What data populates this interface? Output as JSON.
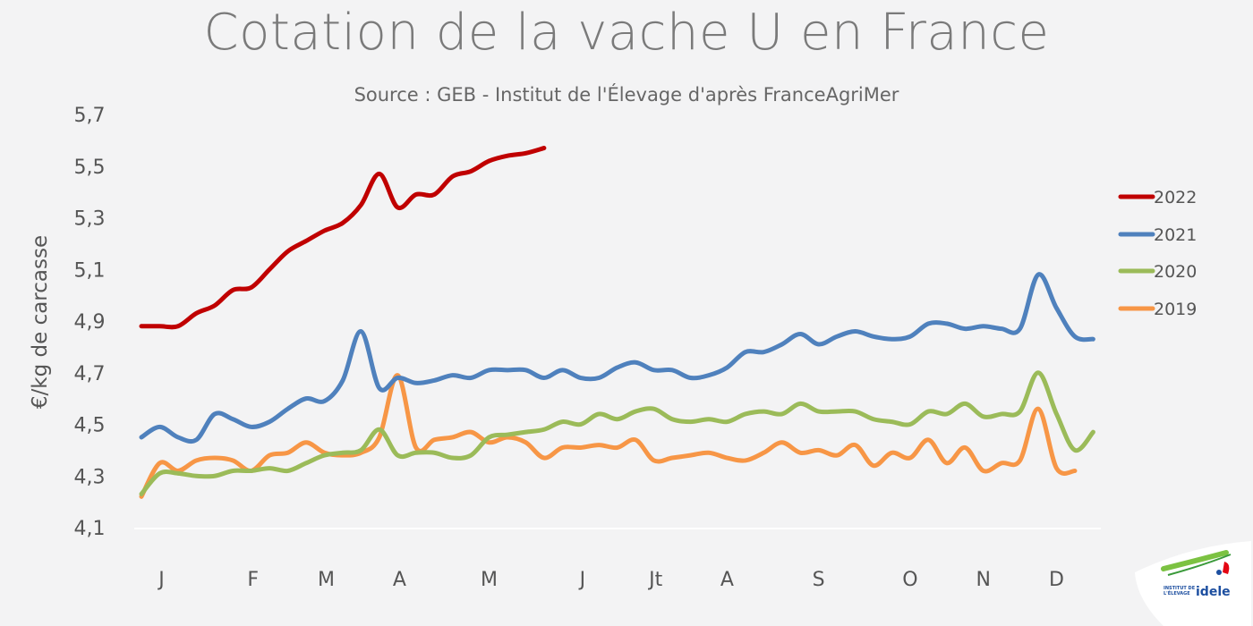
{
  "chart_data": {
    "type": "line",
    "title": "Cotation de la vache U en France",
    "subtitle": "Source : GEB - Institut de l'Élevage d'après FranceAgriMer",
    "ylabel": "€/kg de carcasse",
    "xlabel": "",
    "ylim": [
      4.1,
      5.7
    ],
    "yticks": [
      "4,1",
      "4,3",
      "4,5",
      "4,7",
      "4,9",
      "5,1",
      "5,3",
      "5,5",
      "5,7"
    ],
    "x_unit": "week",
    "xticks": [
      "J",
      "F",
      "M",
      "A",
      "M",
      "J",
      "Jt",
      "A",
      "S",
      "O",
      "N",
      "D"
    ],
    "grid": false,
    "legend_position": "right",
    "series": [
      {
        "name": "2022",
        "color": "#c00000",
        "values": [
          4.88,
          4.88,
          4.88,
          4.93,
          4.96,
          5.02,
          5.03,
          5.1,
          5.17,
          5.21,
          5.25,
          5.28,
          5.35,
          5.47,
          5.34,
          5.39,
          5.39,
          5.46,
          5.48,
          5.52,
          5.54,
          5.55,
          5.57
        ]
      },
      {
        "name": "2021",
        "color": "#4f81bd",
        "values": [
          4.45,
          4.49,
          4.45,
          4.44,
          4.54,
          4.52,
          4.49,
          4.51,
          4.56,
          4.6,
          4.59,
          4.67,
          4.86,
          4.64,
          4.68,
          4.66,
          4.67,
          4.69,
          4.68,
          4.71,
          4.71,
          4.71,
          4.68,
          4.71,
          4.68,
          4.68,
          4.72,
          4.74,
          4.71,
          4.71,
          4.68,
          4.69,
          4.72,
          4.78,
          4.78,
          4.81,
          4.85,
          4.81,
          4.84,
          4.86,
          4.84,
          4.83,
          4.84,
          4.89,
          4.89,
          4.87,
          4.88,
          4.87,
          4.87,
          5.08,
          4.95,
          4.84,
          4.83
        ]
      },
      {
        "name": "2020",
        "color": "#9bbb59",
        "values": [
          4.23,
          4.31,
          4.31,
          4.3,
          4.3,
          4.32,
          4.32,
          4.33,
          4.32,
          4.35,
          4.38,
          4.39,
          4.4,
          4.48,
          4.38,
          4.39,
          4.39,
          4.37,
          4.38,
          4.45,
          4.46,
          4.47,
          4.48,
          4.51,
          4.5,
          4.54,
          4.52,
          4.55,
          4.56,
          4.52,
          4.51,
          4.52,
          4.51,
          4.54,
          4.55,
          4.54,
          4.58,
          4.55,
          4.55,
          4.55,
          4.52,
          4.51,
          4.5,
          4.55,
          4.54,
          4.58,
          4.53,
          4.54,
          4.55,
          4.7,
          4.54,
          4.4,
          4.47
        ]
      },
      {
        "name": "2019",
        "color": "#f79646",
        "values": [
          4.22,
          4.35,
          4.32,
          4.36,
          4.37,
          4.36,
          4.32,
          4.38,
          4.39,
          4.43,
          4.39,
          4.38,
          4.39,
          4.45,
          4.69,
          4.41,
          4.44,
          4.45,
          4.47,
          4.43,
          4.45,
          4.43,
          4.37,
          4.41,
          4.41,
          4.42,
          4.41,
          4.44,
          4.36,
          4.37,
          4.38,
          4.39,
          4.37,
          4.36,
          4.39,
          4.43,
          4.39,
          4.4,
          4.38,
          4.42,
          4.34,
          4.39,
          4.37,
          4.44,
          4.35,
          4.41,
          4.32,
          4.35,
          4.36,
          4.56,
          4.33,
          4.32
        ]
      }
    ]
  },
  "logo": {
    "text": "INSTITUT DE L'ÉLEVAGE idele"
  }
}
